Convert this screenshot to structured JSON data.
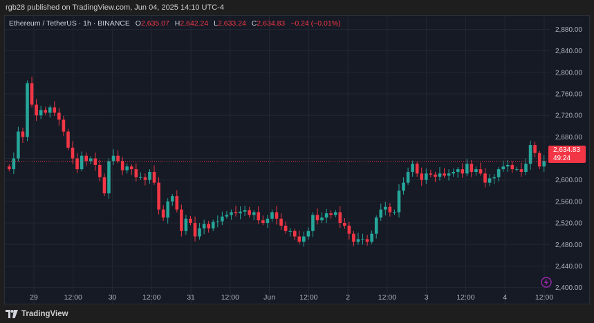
{
  "header": {
    "published": "rgb28 published on TradingView.com, Jun 04, 2025 14:10 UTC-4"
  },
  "legend": {
    "symbol": "Ethereum / TetherUS · 1h · BINANCE",
    "o_label": "O",
    "o_value": "2,635.07",
    "h_label": "H",
    "h_value": "2,642.24",
    "l_label": "L",
    "l_value": "2,633.24",
    "c_label": "C",
    "c_value": "2,634.83",
    "change": "−0.24 (−0.01%)"
  },
  "price_tag": {
    "price": "2,634.83",
    "countdown": "49:24"
  },
  "footer": {
    "brand": "TradingView"
  },
  "icons": {
    "logo": "tradingview-logo-icon",
    "bolt": "lightning-bolt-icon"
  },
  "colors": {
    "up": "#26a69a",
    "down": "#f23645",
    "background": "#161a25",
    "grid": "#232733",
    "text": "#b2b5be"
  },
  "chart_data": {
    "type": "candlestick",
    "title": "Ethereum / TetherUS · 1h · BINANCE",
    "xlabel": "",
    "ylabel": "",
    "ylim": [
      2370,
      2905
    ],
    "y_ticks": [
      "2,880.00",
      "2,840.00",
      "2,800.00",
      "2,760.00",
      "2,720.00",
      "2,680.00",
      "2,640.00",
      "2,600.00",
      "2,560.00",
      "2,520.00",
      "2,480.00",
      "2,440.00",
      "2,400.00"
    ],
    "x_ticks": [
      "29",
      "12:00",
      "30",
      "12:00",
      "31",
      "12:00",
      "Jun",
      "12:00",
      "2",
      "12:00",
      "3",
      "12:00",
      "4",
      "12:00"
    ],
    "grid": true,
    "last_price": 2634.83,
    "close_series": [
      2620,
      2640,
      2690,
      2680,
      2780,
      2740,
      2720,
      2730,
      2725,
      2735,
      2725,
      2712,
      2690,
      2660,
      2640,
      2620,
      2645,
      2635,
      2640,
      2628,
      2605,
      2575,
      2635,
      2645,
      2635,
      2618,
      2625,
      2620,
      2605,
      2605,
      2600,
      2615,
      2595,
      2545,
      2530,
      2560,
      2570,
      2545,
      2505,
      2528,
      2520,
      2495,
      2510,
      2518,
      2510,
      2522,
      2523,
      2532,
      2535,
      2540,
      2538,
      2541,
      2544,
      2535,
      2540,
      2525,
      2520,
      2528,
      2540,
      2528,
      2515,
      2505,
      2505,
      2495,
      2485,
      2495,
      2505,
      2535,
      2525,
      2530,
      2538,
      2535,
      2540,
      2520,
      2515,
      2500,
      2485,
      2490,
      2490,
      2485,
      2500,
      2530,
      2545,
      2550,
      2540,
      2540,
      2580,
      2595,
      2615,
      2630,
      2612,
      2600,
      2612,
      2610,
      2606,
      2612,
      2608,
      2612,
      2615,
      2620,
      2612,
      2630,
      2615,
      2620,
      2612,
      2595,
      2603,
      2605,
      2620,
      2625,
      2628,
      2620,
      2620,
      2615,
      2630,
      2665,
      2650,
      2625,
      2635
    ],
    "candles_note": "hourly OHLC, 26 May 29 to Jun 4"
  }
}
